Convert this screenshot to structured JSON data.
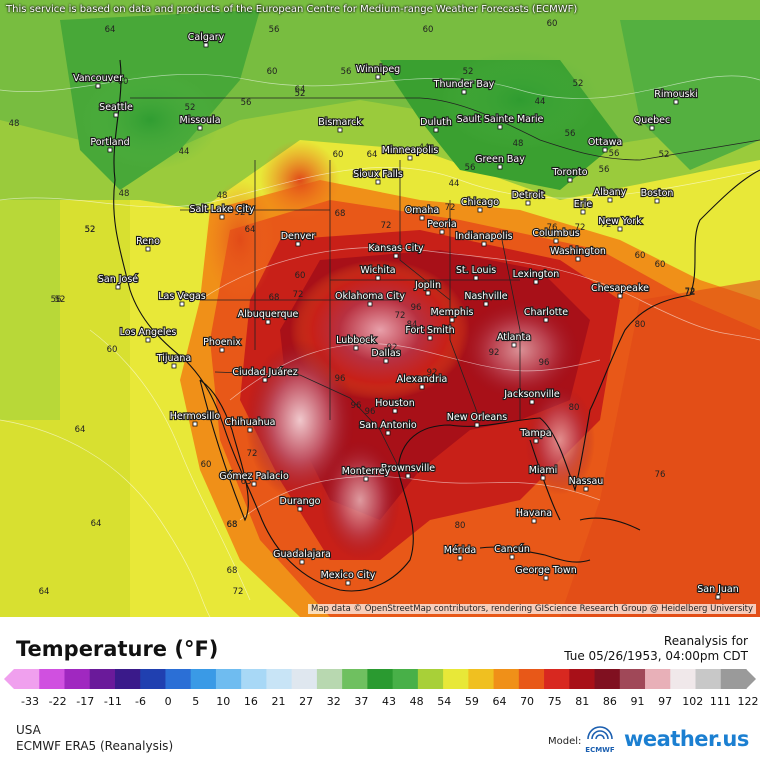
{
  "header": {
    "notice": "This service is based on data and products of the European Centre for Medium-range Weather Forecasts (ECMWF)"
  },
  "map": {
    "attribution": "Map data © OpenStreetMap contributors, rendering GIScience Research Group @ Heidelberg University",
    "cities": [
      "Calgary",
      "Vancouver",
      "Seattle",
      "Winnipeg",
      "Thunder Bay",
      "Missoula",
      "Portland",
      "Bismarck",
      "Duluth",
      "Sault Sainte Marie",
      "Ottawa",
      "Quebec",
      "Rimouski",
      "Minneapolis",
      "Green Bay",
      "Toronto",
      "Sioux Falls",
      "Albany",
      "Boston",
      "Salt Lake City",
      "Detroit",
      "Erie",
      "Chicago",
      "Omaha",
      "Peoria",
      "Indianapolis",
      "Columbus",
      "New York",
      "Reno",
      "Denver",
      "Kansas City",
      "Washington",
      "St. Louis",
      "Wichita",
      "San José",
      "Joplin",
      "Lexington",
      "Las Vegas",
      "Chesapeake",
      "Oklahoma City",
      "Nashville",
      "Albuquerque",
      "Charlotte",
      "Memphis",
      "Fort Smith",
      "Los Angeles",
      "Phoenix",
      "Lubbock",
      "Atlanta",
      "Tijuana",
      "Dallas",
      "Ciudad Juárez",
      "Alexandria",
      "Hermosillo",
      "Jacksonville",
      "Houston",
      "Chihuahua",
      "San Antonio",
      "New Orleans",
      "Tampa",
      "Brownsville",
      "Miami",
      "Monterrey",
      "Gómez Palacio",
      "Nassau",
      "Durango",
      "Havana",
      "Mérida",
      "Cancún",
      "George Town",
      "Guadalajara",
      "Mexico City",
      "San Juan"
    ],
    "isotherm_labels": [
      "64",
      "56",
      "56",
      "60",
      "48",
      "48",
      "52",
      "52",
      "60",
      "60",
      "52",
      "52",
      "44",
      "44",
      "52",
      "60",
      "56",
      "44",
      "48",
      "44",
      "56",
      "56",
      "48",
      "52",
      "56",
      "56",
      "60",
      "64",
      "52",
      "52",
      "52",
      "64",
      "68",
      "64",
      "60",
      "72",
      "68",
      "72",
      "72",
      "60",
      "60",
      "72",
      "72",
      "72",
      "84",
      "92",
      "92",
      "96",
      "96",
      "96",
      "96",
      "92",
      "96",
      "76",
      "80",
      "76",
      "72",
      "68",
      "72",
      "68",
      "64",
      "64",
      "60",
      "60",
      "56",
      "64",
      "63",
      "72",
      "80",
      "80",
      "68",
      "72"
    ]
  },
  "legend": {
    "title": "Temperature (°F)",
    "reanalysis_label": "Reanalysis for",
    "valid_time": "Tue 05/26/1953, 04:00pm CDT",
    "ticks": [
      "-33",
      "-22",
      "-17",
      "-11",
      "-6",
      "0",
      "5",
      "10",
      "16",
      "21",
      "27",
      "32",
      "37",
      "43",
      "48",
      "54",
      "59",
      "64",
      "70",
      "75",
      "81",
      "86",
      "91",
      "97",
      "102",
      "111",
      "122"
    ],
    "colors": [
      "#f0a0ee",
      "#d050e0",
      "#a028c0",
      "#6a1a9a",
      "#3a1a8a",
      "#2040b0",
      "#2b6fd6",
      "#3a9ae6",
      "#6fbcf0",
      "#a8d8f6",
      "#c8e4f6",
      "#dfe7ef",
      "#b8d8b0",
      "#6fc060",
      "#2a9a30",
      "#48b048",
      "#a8d038",
      "#e8e838",
      "#f0c020",
      "#f09018",
      "#e85818",
      "#d82820",
      "#a81018",
      "#801020",
      "#a04858",
      "#e8b0b8",
      "#f0e8ea",
      "#c8c8c8",
      "#9a9a9a"
    ],
    "region": "USA",
    "model_name": "ECMWF ERA5 (Reanalysis)",
    "model_label": "Model:",
    "ecmwf_logo_text": "ECMWF",
    "brand": "weather.us"
  }
}
